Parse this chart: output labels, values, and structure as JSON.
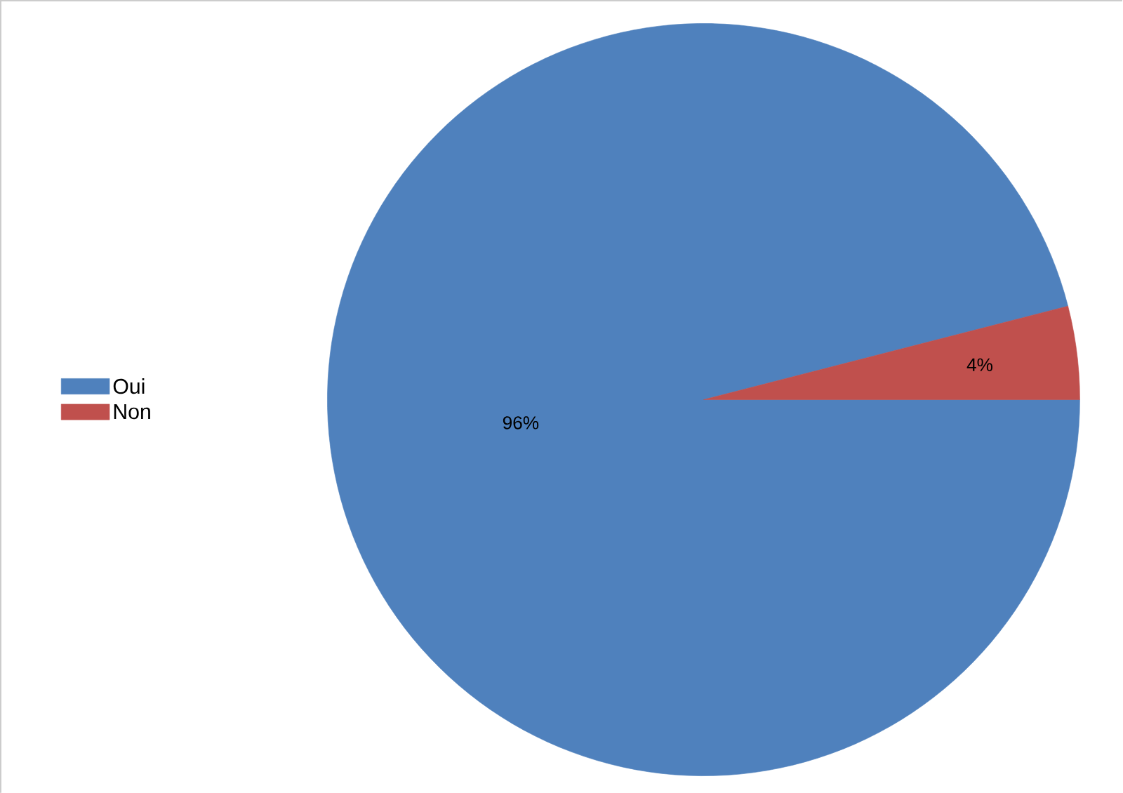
{
  "chart_data": {
    "type": "pie",
    "categories": [
      "Oui",
      "Non"
    ],
    "values": [
      96,
      4
    ],
    "colors": [
      "#4f81bd",
      "#c0504d"
    ],
    "value_labels": [
      "96%",
      "4%"
    ],
    "legend": "left"
  }
}
